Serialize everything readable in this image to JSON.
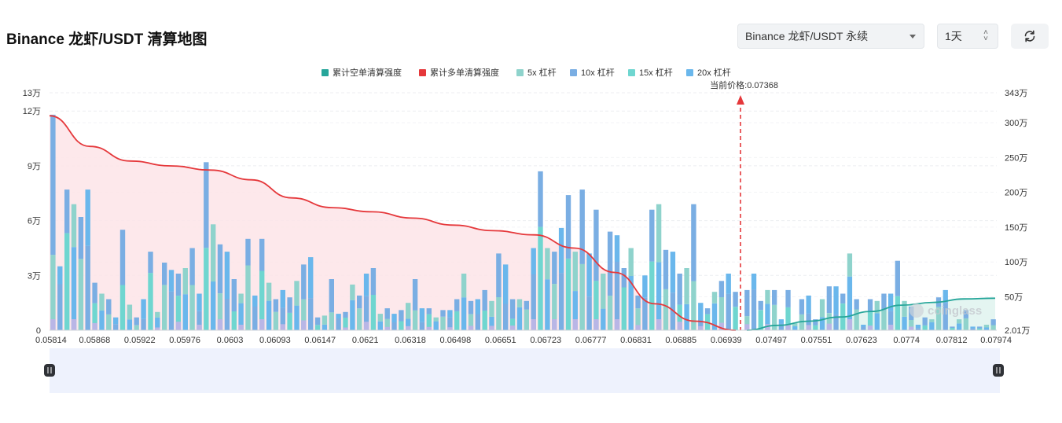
{
  "header": {
    "title": "Binance 龙虾/USDT 清算地图",
    "market_select": "Binance 龙虾/USDT 永续",
    "interval_select": "1天",
    "refresh_icon": "refresh-icon"
  },
  "colors": {
    "short_line": "#26a69a",
    "long_line": "#e5383b",
    "lev5": "#8fd3cc",
    "lev10": "#7aaee3",
    "lev15": "#6fd6d0",
    "lev20": "#6ab7ec",
    "long_fill": "#fde4e7",
    "short_fill": "#dff3ef",
    "price_marker": "#e5383b"
  },
  "watermark": "coinglass",
  "chart_data": {
    "type": "bar",
    "legend": [
      "累计空单清算强度",
      "累计多单清算强度",
      "5x 杠杆",
      "10x 杠杆",
      "15x 杠杆",
      "20x 杠杆"
    ],
    "legend_position": "top",
    "current_price_label": "当前价格:0.07368",
    "current_price": 0.07368,
    "x_tick_labels": [
      "0.05814",
      "0.05868",
      "0.05922",
      "0.05976",
      "0.0603",
      "0.06093",
      "0.06147",
      "0.0621",
      "0.06318",
      "0.06498",
      "0.06651",
      "0.06723",
      "0.06777",
      "0.06831",
      "0.06885",
      "0.06939",
      "0.07497",
      "0.07551",
      "0.07623",
      "0.0774",
      "0.07812",
      "0.07974"
    ],
    "y_left_ticks": [
      "0",
      "3万",
      "6万",
      "9万",
      "12万",
      "13万"
    ],
    "y_left_range": [
      0,
      130000
    ],
    "y_right_ticks": [
      "2.01万",
      "50万",
      "100万",
      "150万",
      "200万",
      "250万",
      "300万",
      "343万"
    ],
    "y_right_range": [
      20100,
      3430000
    ],
    "left_bar_values": [
      118000,
      35000,
      77000,
      69000,
      62000,
      77000,
      26000,
      20000,
      17000,
      7000,
      55000,
      14000,
      7000,
      17000,
      43000,
      10000,
      37000,
      33000,
      31000,
      34000,
      45000,
      20000,
      92000,
      58000,
      47000,
      43000,
      28000,
      20000,
      50000,
      19000,
      50000,
      26000,
      17000,
      22000,
      18000,
      27000,
      36000,
      40000,
      7000,
      8000,
      28000,
      9000,
      10000,
      25000,
      19000,
      31000,
      34000,
      9000,
      12000,
      9000,
      11000,
      15000,
      28000,
      12000,
      12000,
      7000,
      11000,
      11000,
      17000,
      31000,
      16000,
      17000,
      22000,
      16000,
      42000,
      36000,
      17000,
      17000,
      16000,
      45000,
      87000,
      45000,
      43000,
      56000,
      74000,
      43000,
      77000,
      42000,
      66000,
      31000,
      54000,
      52000,
      34000,
      45000,
      19000,
      30000,
      66000,
      69000,
      44000,
      43000,
      31000,
      34000,
      69000,
      15000,
      12000,
      21000,
      27000,
      31000,
      21000
    ],
    "right_bar_values": [
      22000,
      31000,
      16000,
      22000,
      22000,
      6000,
      22000,
      4000,
      17000,
      19000,
      6000,
      17000,
      24000,
      24000,
      20000,
      42000,
      17000,
      3000,
      17000,
      16000,
      20000,
      20000,
      38000,
      16000,
      13000,
      3000,
      7000,
      6000,
      18000,
      22000,
      2000,
      6000,
      11000,
      2000,
      2000,
      3000,
      6000
    ],
    "cumulative_long_line": [
      3100000,
      2660000,
      2450000,
      2380000,
      2320000,
      2180000,
      1920000,
      1780000,
      1720000,
      1630000,
      1530000,
      1450000,
      1390000,
      1200000,
      850000,
      400000,
      150000,
      20100
    ],
    "cumulative_short_line": [
      20100,
      90000,
      150000,
      210000,
      290000,
      380000,
      420000,
      470000,
      480000
    ]
  }
}
